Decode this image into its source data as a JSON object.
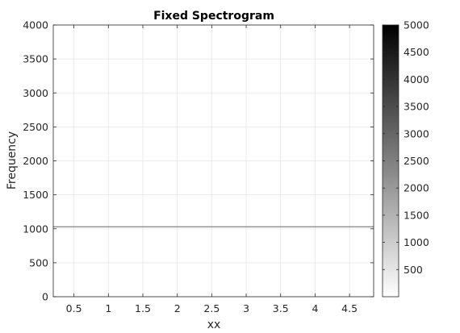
{
  "figure": {
    "title": "Fixed Spectrogram",
    "xlabel": "xx",
    "ylabel": "Frequency"
  },
  "chart_data": {
    "type": "heatmap",
    "title": "Fixed Spectrogram",
    "xlabel": "xx",
    "ylabel": "Frequency",
    "xlim": [
      0.2,
      4.85
    ],
    "ylim": [
      0,
      4000
    ],
    "x_ticks": [
      0.5,
      1,
      1.5,
      2,
      2.5,
      3,
      3.5,
      4,
      4.5
    ],
    "x_tick_labels": [
      "0.5",
      "1",
      "1.5",
      "2",
      "2.5",
      "3",
      "3.5",
      "4",
      "4.5"
    ],
    "y_ticks": [
      0,
      500,
      1000,
      1500,
      2000,
      2500,
      3000,
      3500,
      4000
    ],
    "y_tick_labels": [
      "0",
      "500",
      "1000",
      "1500",
      "2000",
      "2500",
      "3000",
      "3500",
      "4000"
    ],
    "grid": true,
    "colormap": "gray-reversed",
    "colorbar": {
      "range": [
        0,
        5000
      ],
      "ticks": [
        500,
        1000,
        1500,
        2000,
        2500,
        3000,
        3500,
        4000,
        4500,
        5000
      ],
      "tick_labels": [
        "500",
        "1000",
        "1500",
        "2000",
        "2500",
        "3000",
        "3500",
        "4000",
        "4500",
        "5000"
      ],
      "low_color": "#ffffff",
      "high_color": "#000000"
    },
    "features": [
      {
        "kind": "horizontal_line",
        "y": 1030,
        "color": "#808080"
      }
    ]
  }
}
